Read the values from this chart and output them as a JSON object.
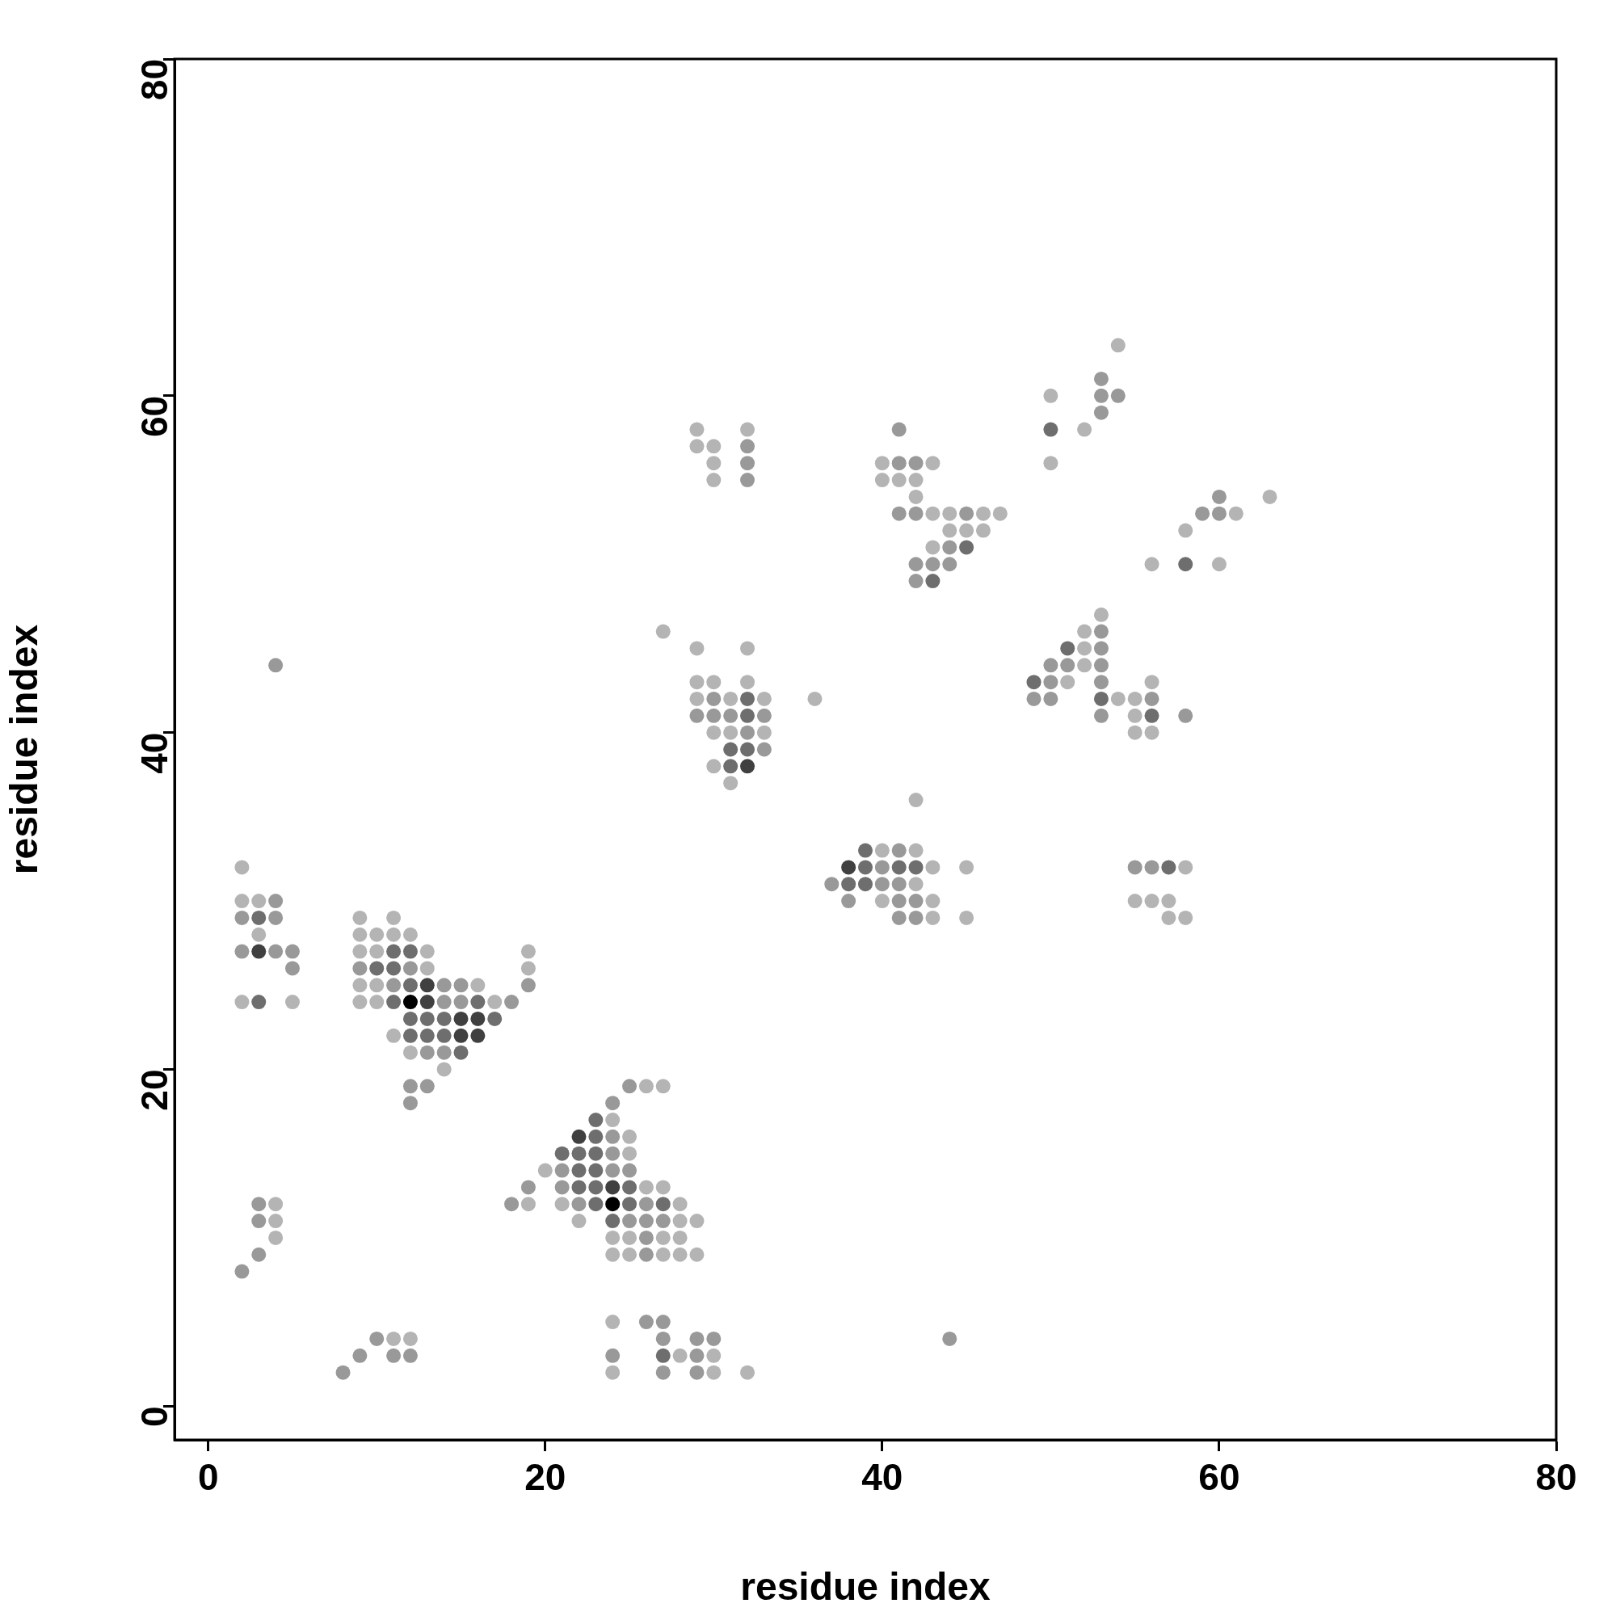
{
  "chart_data": {
    "type": "scatter",
    "xlabel": "residue index",
    "ylabel": "residue index",
    "xlim": [
      -2,
      80
    ],
    "ylim": [
      -2,
      80
    ],
    "xticks": [
      0,
      20,
      40,
      60,
      80
    ],
    "yticks": [
      0,
      20,
      40,
      60,
      80
    ],
    "legend": false,
    "marker": "circle",
    "series": [
      {
        "color": "#b4b4b4",
        "x": [
          24,
          30,
          32,
          28,
          30,
          11,
          12,
          24,
          24,
          25,
          27,
          28,
          29,
          4,
          24,
          25,
          27,
          28,
          4,
          22,
          28,
          29,
          4,
          19,
          21,
          28,
          26,
          27,
          20,
          25,
          25,
          24,
          26,
          27,
          14,
          12,
          11,
          2,
          5,
          9,
          10,
          17,
          9,
          10,
          16,
          13,
          19,
          9,
          10,
          13,
          19,
          3,
          9,
          10,
          11,
          12,
          9,
          11,
          43,
          45,
          57,
          58,
          2,
          3,
          40,
          43,
          55,
          56,
          57,
          42,
          2,
          43,
          45,
          58,
          40,
          42,
          42,
          31,
          30,
          30,
          31,
          33,
          55,
          56,
          55,
          29,
          31,
          33,
          36,
          54,
          55,
          29,
          30,
          32,
          51,
          56,
          52,
          29,
          32,
          52,
          27,
          52,
          53,
          56,
          60,
          43,
          44,
          45,
          46,
          58,
          43,
          44,
          46,
          47,
          61,
          42,
          63,
          30,
          40,
          41,
          42,
          30,
          40,
          43,
          50,
          29,
          30,
          29,
          32,
          52,
          50,
          54
        ],
        "values": [
          2,
          2,
          2,
          3,
          3,
          4,
          4,
          5,
          9,
          9,
          9,
          9,
          9,
          10,
          10,
          10,
          10,
          10,
          11,
          11,
          11,
          11,
          12,
          12,
          12,
          12,
          13,
          13,
          14,
          15,
          16,
          17,
          19,
          19,
          20,
          21,
          22,
          24,
          24,
          24,
          24,
          24,
          25,
          25,
          25,
          26,
          26,
          27,
          27,
          27,
          27,
          28,
          28,
          28,
          28,
          28,
          29,
          29,
          29,
          29,
          29,
          29,
          30,
          30,
          30,
          30,
          30,
          30,
          30,
          31,
          32,
          32,
          32,
          32,
          33,
          33,
          36,
          37,
          38,
          40,
          40,
          40,
          40,
          40,
          41,
          42,
          42,
          42,
          42,
          42,
          42,
          43,
          43,
          43,
          43,
          43,
          44,
          45,
          45,
          45,
          46,
          46,
          47,
          50,
          50,
          51,
          52,
          52,
          52,
          52,
          53,
          53,
          53,
          53,
          53,
          54,
          54,
          55,
          55,
          55,
          55,
          56,
          56,
          56,
          56,
          57,
          57,
          58,
          58,
          58,
          60,
          63
        ]
      },
      {
        "color": "#999999",
        "x": [
          8,
          27,
          29,
          9,
          11,
          12,
          24,
          29,
          10,
          27,
          29,
          30,
          44,
          26,
          27,
          2,
          3,
          26,
          26,
          3,
          25,
          26,
          27,
          3,
          18,
          22,
          26,
          19,
          21,
          21,
          24,
          25,
          24,
          24,
          12,
          24,
          12,
          13,
          25,
          13,
          14,
          14,
          15,
          18,
          11,
          14,
          15,
          19,
          5,
          9,
          12,
          2,
          4,
          5,
          2,
          4,
          41,
          42,
          4,
          38,
          41,
          42,
          37,
          40,
          41,
          40,
          55,
          56,
          41,
          33,
          32,
          29,
          30,
          31,
          33,
          53,
          58,
          30,
          49,
          50,
          56,
          50,
          53,
          4,
          50,
          51,
          53,
          53,
          53,
          42,
          42,
          43,
          44,
          44,
          41,
          42,
          45,
          59,
          60,
          60,
          32,
          32,
          41,
          42,
          32,
          41,
          53,
          53,
          54,
          53
        ],
        "values": [
          2,
          2,
          2,
          3,
          3,
          3,
          3,
          3,
          4,
          4,
          4,
          4,
          4,
          5,
          5,
          8,
          9,
          9,
          10,
          11,
          11,
          11,
          11,
          12,
          12,
          12,
          12,
          13,
          13,
          14,
          14,
          14,
          15,
          16,
          18,
          18,
          19,
          19,
          19,
          21,
          21,
          24,
          24,
          24,
          25,
          25,
          25,
          25,
          26,
          26,
          26,
          27,
          27,
          27,
          29,
          29,
          29,
          29,
          30,
          30,
          30,
          30,
          31,
          31,
          31,
          32,
          32,
          32,
          33,
          39,
          40,
          41,
          41,
          41,
          41,
          41,
          41,
          42,
          42,
          42,
          42,
          43,
          43,
          44,
          44,
          44,
          44,
          45,
          46,
          49,
          50,
          50,
          50,
          51,
          53,
          53,
          53,
          53,
          53,
          54,
          55,
          56,
          56,
          56,
          57,
          58,
          59,
          60,
          60,
          61
        ]
      },
      {
        "color": "#6e6e6e",
        "x": [
          27,
          24,
          23,
          25,
          27,
          22,
          23,
          25,
          22,
          23,
          21,
          22,
          23,
          23,
          23,
          15,
          12,
          13,
          14,
          12,
          13,
          14,
          17,
          3,
          11,
          16,
          12,
          10,
          11,
          11,
          12,
          3,
          38,
          39,
          39,
          41,
          42,
          57,
          39,
          31,
          31,
          32,
          32,
          56,
          32,
          53,
          49,
          51,
          43,
          58,
          45,
          50
        ],
        "values": [
          3,
          11,
          12,
          12,
          12,
          13,
          13,
          13,
          14,
          14,
          15,
          15,
          15,
          16,
          17,
          21,
          22,
          22,
          22,
          23,
          23,
          23,
          23,
          24,
          24,
          24,
          25,
          26,
          26,
          27,
          27,
          29,
          31,
          31,
          32,
          32,
          32,
          32,
          33,
          38,
          39,
          39,
          41,
          41,
          42,
          42,
          43,
          45,
          49,
          50,
          51,
          58
        ]
      },
      {
        "color": "#404040",
        "x": [
          24,
          22,
          15,
          16,
          15,
          16,
          13,
          13,
          3,
          38,
          32
        ],
        "values": [
          13,
          16,
          22,
          22,
          23,
          23,
          24,
          25,
          27,
          32,
          38
        ]
      },
      {
        "color": "#000000",
        "x": [
          24,
          12
        ],
        "values": [
          12,
          24
        ]
      }
    ]
  }
}
